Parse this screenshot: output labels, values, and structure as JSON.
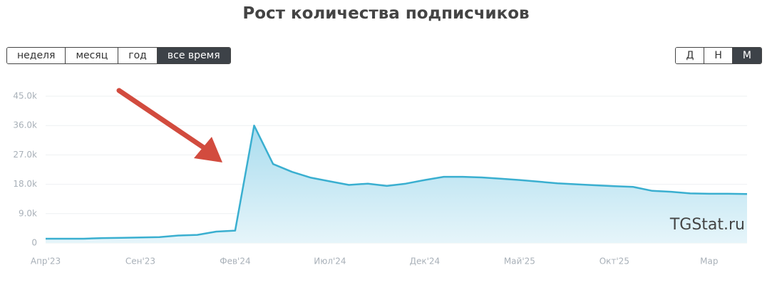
{
  "chart_data": {
    "type": "area",
    "title": "Рост количества подписчиков",
    "categories": [
      "Апр'23",
      null,
      null,
      null,
      null,
      "Сен'23",
      null,
      null,
      null,
      null,
      "Фев'24",
      null,
      null,
      null,
      null,
      "Июл'24",
      null,
      null,
      null,
      null,
      "Дек'24",
      null,
      null,
      null,
      null,
      "Май'25",
      null,
      null,
      null,
      null,
      "Окт'25",
      null,
      null,
      null,
      null,
      "Мар",
      null,
      null
    ],
    "values": [
      1300,
      1300,
      1300,
      1500,
      1600,
      1700,
      1800,
      2300,
      2500,
      3500,
      3800,
      36000,
      24200,
      21800,
      20000,
      18900,
      17800,
      18200,
      17500,
      18200,
      19300,
      20300,
      20300,
      20100,
      19700,
      19300,
      18800,
      18300,
      18000,
      17700,
      17400,
      17200,
      16000,
      15700,
      15200,
      15100,
      15100,
      15000
    ],
    "color": "#3aafd0",
    "ylim": [
      0,
      45000
    ],
    "yticks": [
      0,
      {
        "value": 9000,
        "label": "9.0k"
      },
      {
        "value": 18000,
        "label": "18.0k"
      },
      {
        "value": 27000,
        "label": "27.0k"
      },
      {
        "value": 36000,
        "label": "36.0k"
      },
      {
        "value": 45000,
        "label": "45.0k"
      }
    ],
    "grid": true,
    "watermark": "TGStat.ru"
  },
  "controls": {
    "period_buttons": [
      "неделя",
      "месяц",
      "год",
      "все время"
    ],
    "period_active": 3,
    "scale_buttons": [
      "Д",
      "Н",
      "М"
    ],
    "scale_active": 2
  }
}
